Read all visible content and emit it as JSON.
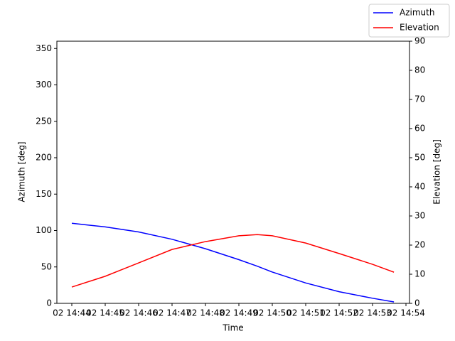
{
  "chart_data": {
    "type": "line",
    "xlabel": "Time",
    "ylabel": "Azimuth [deg]",
    "y2label": "Elevation [deg]",
    "x": [
      44,
      45,
      46,
      47,
      48,
      49,
      49.55,
      50,
      51,
      52,
      53,
      53.64
    ],
    "xlim": [
      43.553,
      54.106
    ],
    "xticks": [
      {
        "value": 44,
        "label": "02 14:44"
      },
      {
        "value": 45,
        "label": "02 14:45"
      },
      {
        "value": 46,
        "label": "02 14:46"
      },
      {
        "value": 47,
        "label": "02 14:47"
      },
      {
        "value": 48,
        "label": "02 14:48"
      },
      {
        "value": 49,
        "label": "02 14:49"
      },
      {
        "value": 50,
        "label": "02 14:50"
      },
      {
        "value": 51,
        "label": "02 14:51"
      },
      {
        "value": 52,
        "label": "02 14:52"
      },
      {
        "value": 53,
        "label": "02 14:53"
      },
      {
        "value": 54,
        "label": "02 14:54"
      }
    ],
    "ylim": [
      0,
      360
    ],
    "yticks": [
      0,
      50,
      100,
      150,
      200,
      250,
      300,
      350
    ],
    "y2lim": [
      0,
      90
    ],
    "y2ticks": [
      0,
      10,
      20,
      30,
      40,
      50,
      60,
      70,
      80,
      90
    ],
    "legend": "upper right",
    "series": [
      {
        "name": "Azimuth",
        "color": "#0000ff",
        "values": [
          110,
          105,
          98,
          88,
          75,
          60,
          51,
          43,
          28,
          16,
          7,
          2
        ]
      },
      {
        "name": "Elevation",
        "color": "#ff0000",
        "axis": "y2",
        "values": [
          5.6,
          9.3,
          13.9,
          18.5,
          21.2,
          23.2,
          23.6,
          23.2,
          20.7,
          17.1,
          13.4,
          10.7
        ]
      }
    ]
  }
}
